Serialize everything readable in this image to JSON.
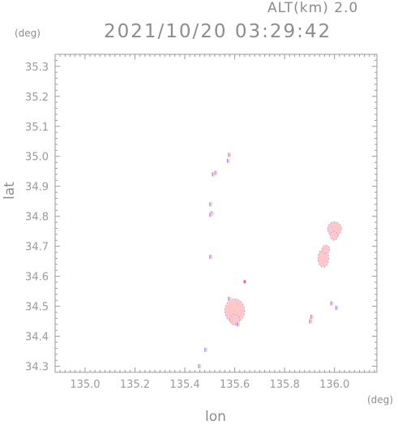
{
  "header": {
    "altitude": "ALT(km)  2.0",
    "timestamp": "2021/10/20 03:29:42"
  },
  "chart_data": {
    "type": "heatmap",
    "title": "2021/10/20 03:29:42",
    "subtitle": "ALT(km)  2.0",
    "xlabel": "lon",
    "ylabel": "lat",
    "x_unit": "(deg)",
    "y_unit": "(deg)",
    "xlim": [
      134.88,
      136.17
    ],
    "ylim": [
      34.28,
      35.34
    ],
    "x_ticks": [
      135.0,
      135.2,
      135.4,
      135.6,
      135.8,
      136.0
    ],
    "y_ticks": [
      34.3,
      34.4,
      34.5,
      34.6,
      34.7,
      34.8,
      34.9,
      35.0,
      35.1,
      35.2,
      35.3
    ],
    "grid": false,
    "colors": {
      "weak_echo": "#ffc8c8",
      "moderate_echo": "#e87070",
      "edge": "#8080ff",
      "axis": "#9a9a9a"
    },
    "regions": [
      {
        "lon": 135.6,
        "lat": 34.485,
        "rx": 0.04,
        "ry": 0.04,
        "level": "weak"
      },
      {
        "lon": 135.6,
        "lat": 34.455,
        "rx": 0.02,
        "ry": 0.018,
        "level": "weak"
      },
      {
        "lon": 136.0,
        "lat": 34.758,
        "rx": 0.028,
        "ry": 0.024,
        "level": "weak"
      },
      {
        "lon": 135.955,
        "lat": 34.66,
        "rx": 0.022,
        "ry": 0.03,
        "level": "weak"
      },
      {
        "lon": 135.965,
        "lat": 34.69,
        "rx": 0.016,
        "ry": 0.014,
        "level": "weak"
      },
      {
        "lon": 135.998,
        "lat": 34.735,
        "rx": 0.016,
        "ry": 0.015,
        "level": "weak"
      },
      {
        "lon": 135.64,
        "lat": 34.582,
        "rx": 0.005,
        "ry": 0.006,
        "level": "moderate"
      }
    ],
    "speckles": [
      [
        135.58,
        35.005
      ],
      [
        135.575,
        34.985
      ],
      [
        135.525,
        34.945
      ],
      [
        135.515,
        34.94
      ],
      [
        135.505,
        34.84
      ],
      [
        135.51,
        34.81
      ],
      [
        135.505,
        34.805
      ],
      [
        135.505,
        34.665
      ],
      [
        135.485,
        34.355
      ],
      [
        135.46,
        34.3
      ],
      [
        135.91,
        34.465
      ],
      [
        135.905,
        34.45
      ],
      [
        135.99,
        34.51
      ],
      [
        136.01,
        34.495
      ],
      [
        135.615,
        34.44
      ],
      [
        135.58,
        34.525
      ]
    ]
  }
}
